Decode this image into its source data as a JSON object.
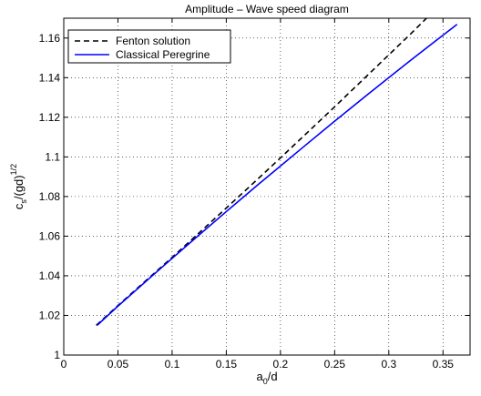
{
  "chart_data": {
    "type": "line",
    "title": "Amplitude – Wave speed diagram",
    "xlabel": {
      "base": "a",
      "sub": "0",
      "rest": "/d"
    },
    "ylabel": {
      "base": "c",
      "sub": "s",
      "mid": "/(gd)",
      "sup": "1/2"
    },
    "xlim": [
      0,
      0.375
    ],
    "ylim": [
      1.0,
      1.17
    ],
    "xticks": [
      0,
      0.05,
      0.1,
      0.15,
      0.2,
      0.25,
      0.3,
      0.35
    ],
    "xtick_labels": [
      "0",
      "0.05",
      "0.1",
      "0.15",
      "0.2",
      "0.25",
      "0.3",
      "0.35"
    ],
    "yticks": [
      1.0,
      1.02,
      1.04,
      1.06,
      1.08,
      1.1,
      1.12,
      1.14,
      1.16
    ],
    "ytick_labels": [
      "1",
      "1.02",
      "1.04",
      "1.06",
      "1.08",
      "1.1",
      "1.12",
      "1.14",
      "1.16"
    ],
    "grid": true,
    "legend_position": "top-left",
    "series": [
      {
        "name": "Fenton solution",
        "color": "#000000",
        "style": "dashed",
        "x": [
          0.03,
          0.05,
          0.08,
          0.1,
          0.12,
          0.15,
          0.18,
          0.2,
          0.22,
          0.25,
          0.28,
          0.3,
          0.32,
          0.345
        ],
        "y": [
          1.015,
          1.025,
          1.0396,
          1.0493,
          1.0592,
          1.0742,
          1.0893,
          1.0995,
          1.1098,
          1.1253,
          1.141,
          1.1515,
          1.162,
          1.1755
        ]
      },
      {
        "name": "Classical Peregrine",
        "color": "#0000ff",
        "style": "solid",
        "x": [
          0.031,
          0.05,
          0.08,
          0.1,
          0.12,
          0.15,
          0.18,
          0.2,
          0.22,
          0.25,
          0.28,
          0.3,
          0.32,
          0.34,
          0.363
        ],
        "y": [
          1.0151,
          1.0247,
          1.0392,
          1.0488,
          1.0583,
          1.0724,
          1.0863,
          1.0954,
          1.1045,
          1.118,
          1.1313,
          1.14,
          1.1487,
          1.1572,
          1.1669
        ]
      }
    ]
  }
}
